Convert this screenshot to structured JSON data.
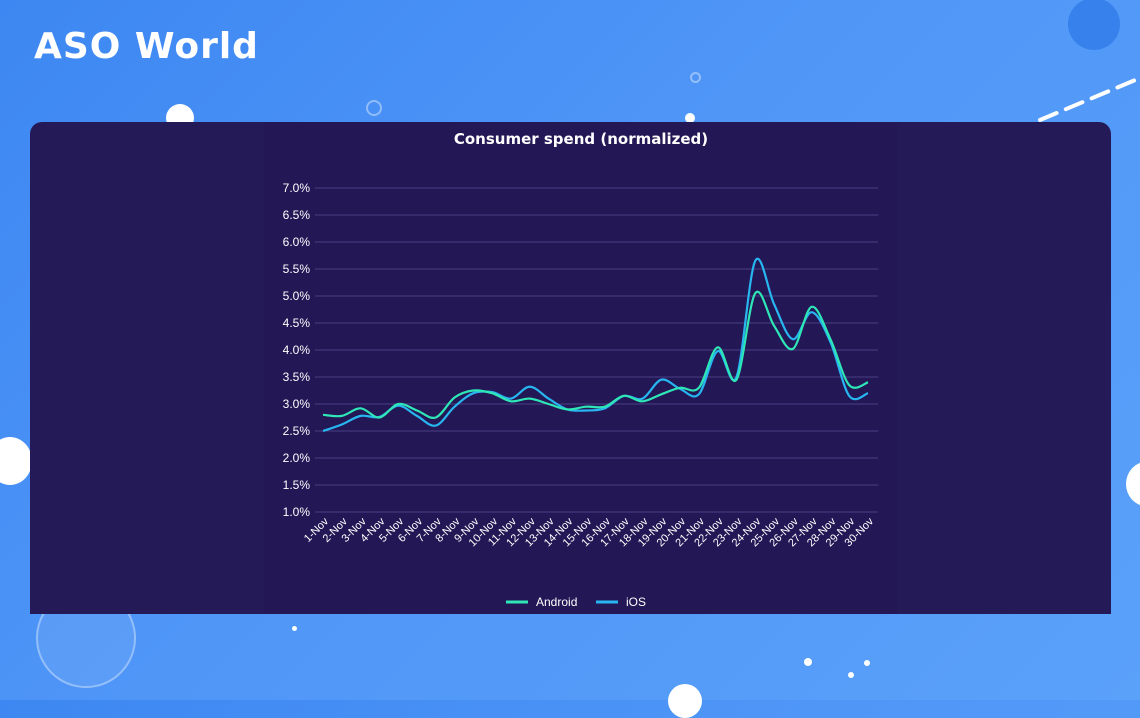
{
  "brand": {
    "logo_text": "ASO World"
  },
  "chart_data": {
    "type": "line",
    "title": "Consumer spend (normalized)",
    "categories": [
      "1-Nov",
      "2-Nov",
      "3-Nov",
      "4-Nov",
      "5-Nov",
      "6-Nov",
      "7-Nov",
      "8-Nov",
      "9-Nov",
      "10-Nov",
      "11-Nov",
      "12-Nov",
      "13-Nov",
      "14-Nov",
      "15-Nov",
      "16-Nov",
      "17-Nov",
      "18-Nov",
      "19-Nov",
      "20-Nov",
      "21-Nov",
      "22-Nov",
      "23-Nov",
      "24-Nov",
      "25-Nov",
      "26-Nov",
      "27-Nov",
      "28-Nov",
      "29-Nov",
      "30-Nov"
    ],
    "series": [
      {
        "name": "Android",
        "color": "#2ee6b6",
        "values": [
          2.8,
          2.78,
          2.92,
          2.75,
          3.0,
          2.88,
          2.75,
          3.12,
          3.25,
          3.2,
          3.05,
          3.1,
          3.0,
          2.9,
          2.95,
          2.95,
          3.15,
          3.05,
          3.18,
          3.3,
          3.3,
          4.05,
          3.45,
          5.05,
          4.45,
          4.02,
          4.8,
          4.2,
          3.35,
          3.4
        ]
      },
      {
        "name": "iOS",
        "color": "#28b6f0",
        "values": [
          2.5,
          2.62,
          2.78,
          2.76,
          2.97,
          2.78,
          2.6,
          2.95,
          3.2,
          3.22,
          3.1,
          3.32,
          3.1,
          2.9,
          2.88,
          2.92,
          3.15,
          3.1,
          3.45,
          3.28,
          3.18,
          3.98,
          3.5,
          5.65,
          4.85,
          4.2,
          4.7,
          4.15,
          3.15,
          3.2
        ]
      }
    ],
    "y_ticks": [
      "7.0%",
      "6.5%",
      "6.0%",
      "5.5%",
      "5.0%",
      "4.5%",
      "4.0%",
      "3.5%",
      "3.0%",
      "2.5%",
      "2.0%",
      "1.5%",
      "1.0%"
    ],
    "ylim": [
      1.0,
      7.0
    ],
    "grid": true,
    "legend_position": "bottom-center"
  }
}
